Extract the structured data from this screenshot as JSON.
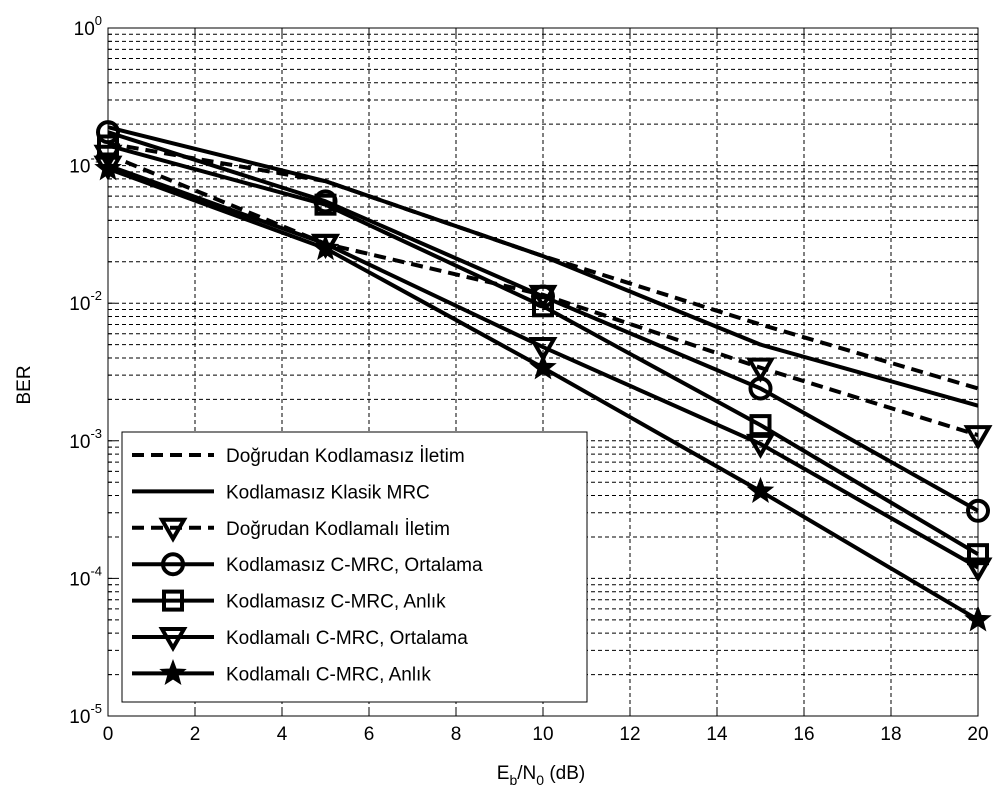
{
  "chart_data": {
    "type": "line",
    "title": "",
    "xlabel_parts": {
      "main": "E",
      "sub1": "b",
      "mid": "/N",
      "sub2": "0",
      "tail": " (dB)"
    },
    "ylabel": "BER",
    "x": [
      0,
      5,
      10,
      15,
      20
    ],
    "xlim": [
      0,
      20
    ],
    "ylim": [
      1e-05,
      1
    ],
    "yscale": "log",
    "grid": "major-and-minor",
    "legend_position": "lower-left",
    "x_ticks": [
      "0",
      "2",
      "4",
      "6",
      "8",
      "10",
      "12",
      "14",
      "16",
      "18",
      "20"
    ],
    "y_ticks": [
      {
        "base": "10",
        "exp": "0"
      },
      {
        "base": "10",
        "exp": "-1"
      },
      {
        "base": "10",
        "exp": "-2"
      },
      {
        "base": "10",
        "exp": "-3"
      },
      {
        "base": "10",
        "exp": "-4"
      },
      {
        "base": "10",
        "exp": "-5"
      }
    ],
    "series": [
      {
        "name": "Doğrudan Kodlamasız İletim",
        "style": "dashed",
        "marker": "none",
        "values": [
          0.145,
          0.077,
          0.022,
          0.007,
          0.0024
        ]
      },
      {
        "name": "Kodlamasız Klasik MRC",
        "style": "solid",
        "marker": "none",
        "values": [
          0.19,
          0.077,
          0.022,
          0.005,
          0.0018
        ]
      },
      {
        "name": "Doğrudan Kodlamalı İletim",
        "style": "dashed",
        "marker": "triangle-down",
        "values": [
          0.12,
          0.027,
          0.0115,
          0.0034,
          0.0011
        ]
      },
      {
        "name": "Kodlamasız C-MRC, Ortalama",
        "style": "solid",
        "marker": "circle",
        "values": [
          0.175,
          0.055,
          0.0112,
          0.0024,
          0.00031
        ]
      },
      {
        "name": "Kodlamasız C-MRC, Anlık",
        "style": "solid",
        "marker": "square",
        "values": [
          0.14,
          0.052,
          0.0095,
          0.0013,
          0.00015
        ]
      },
      {
        "name": "Kodlamalı C-MRC, Ortalama",
        "style": "solid",
        "marker": "triangle-down",
        "values": [
          0.1,
          0.027,
          0.0048,
          0.00095,
          0.00012
        ]
      },
      {
        "name": "Kodlamalı C-MRC, Anlık",
        "style": "solid",
        "marker": "star",
        "values": [
          0.095,
          0.025,
          0.0034,
          0.00043,
          5e-05
        ]
      }
    ]
  }
}
